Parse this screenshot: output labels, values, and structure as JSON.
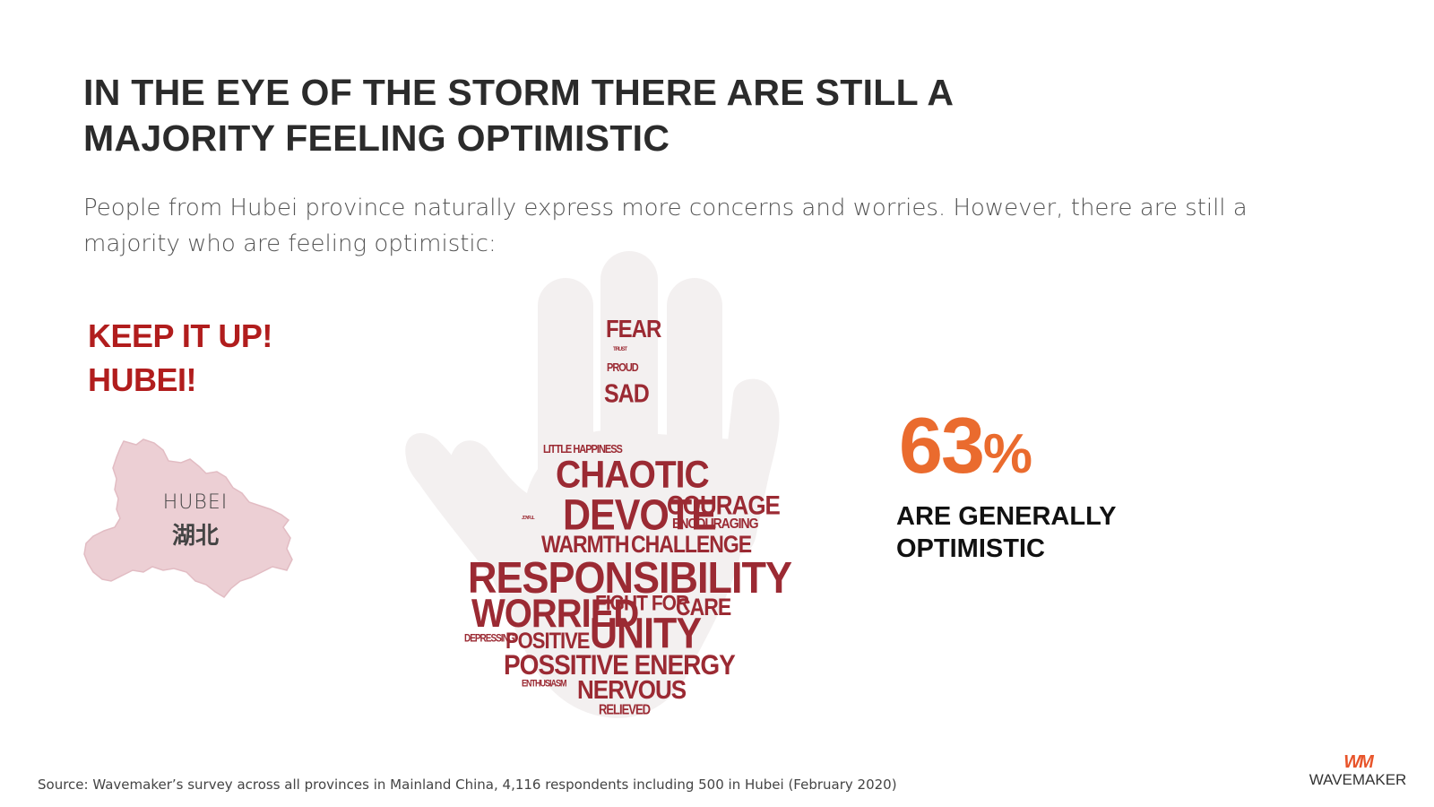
{
  "title": {
    "line1": "IN THE EYE OF THE STORM THERE ARE STILL A",
    "line2": "MAJORITY FEELING OPTIMISTIC"
  },
  "subtitle": "People from Hubei province naturally express more concerns and worries. However, there are still a majority who are feeling optimistic:",
  "slogan": {
    "line1": "KEEP IT UP!",
    "line2": "HUBEI!"
  },
  "map": {
    "label_en": "HUBEI",
    "label_cn": "湖北",
    "fill_color": "#eccfd4"
  },
  "word_cloud": {
    "words": [
      "FEAR",
      "TRUST",
      "PROUD",
      "SAD",
      "LITTLE HAPPINESS",
      "CHAOTIC",
      "JOYFUL",
      "DEVOTE",
      "COURAGE",
      "ENCOURAGING",
      "WARMTH",
      "CHALLENGE",
      "RESPONSIBILITY",
      "WORRIED",
      "FIGHT FOR",
      "CARE",
      "DEPRESSING",
      "POSITIVE",
      "UNITY",
      "POSSITIVE ENERGY",
      "ENTHUSIASM",
      "NERVOUS",
      "RELIEVED"
    ],
    "color": "#9b2a33"
  },
  "stat": {
    "value": "63",
    "unit": "%",
    "caption_line1": "ARE GENERALLY",
    "caption_line2": "OPTIMISTIC",
    "color": "#ea6b2e"
  },
  "source": "Source: Wavemaker’s survey across all provinces in Mainland China, 4,116 respondents including 500 in Hubei (February 2020)",
  "logo": {
    "mark": "WM",
    "name": "WAVEMAKER",
    "color": "#e8542a"
  }
}
